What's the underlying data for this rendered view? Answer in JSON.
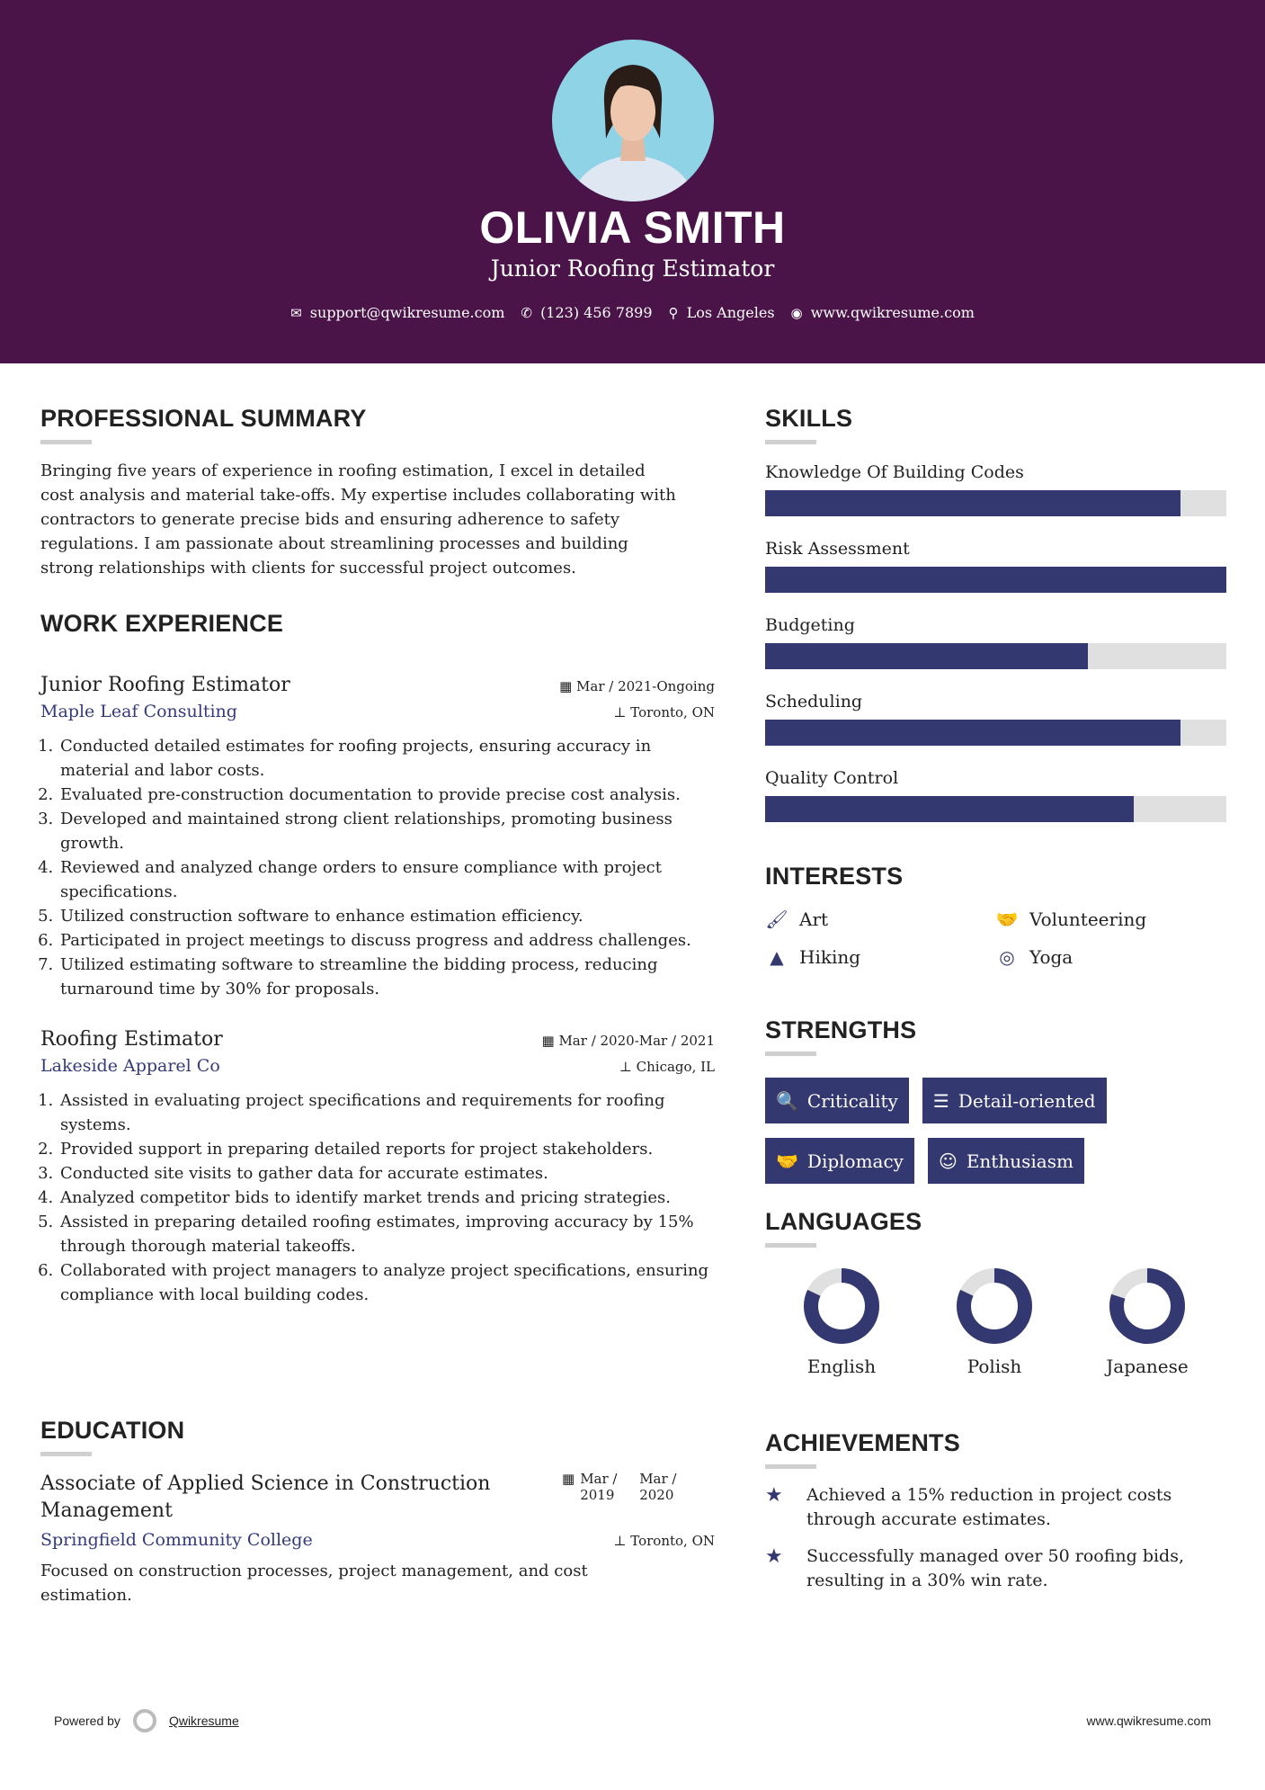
{
  "colors": {
    "header_bg": "#4a1449",
    "accent": "#343870",
    "bar_track": "#e0e0e0"
  },
  "header": {
    "name": "OLIVIA SMITH",
    "title": "Junior Roofing Estimator",
    "contact": [
      {
        "icon": "envelope-icon",
        "glyph": "✉",
        "text": "support@qwikresume.com"
      },
      {
        "icon": "phone-icon",
        "glyph": "✆",
        "text": "(123) 456 7899"
      },
      {
        "icon": "map-pin-icon",
        "glyph": "⚲",
        "text": "Los Angeles"
      },
      {
        "icon": "globe-icon",
        "glyph": "◉",
        "text": "www.qwikresume.com"
      }
    ]
  },
  "summary": {
    "heading": "PROFESSIONAL SUMMARY",
    "lines": [
      "Bringing five years of experience in roofing estimation, I excel in detailed",
      "cost analysis and material take-offs. My expertise includes collaborating with",
      "contractors to generate precise bids and ensuring adherence to safety",
      "regulations. I am passionate about streamlining processes and building",
      "strong relationships with clients for successful project outcomes."
    ]
  },
  "experience": {
    "heading": "WORK EXPERIENCE",
    "jobs": [
      {
        "title": "Junior Roofing Estimator",
        "company": "Maple Leaf Consulting",
        "dates": "Mar / 2021-Ongoing",
        "location": "Toronto, ON",
        "items": [
          "Conducted detailed estimates for roofing projects, ensuring accuracy in material and labor costs.",
          "Evaluated pre-construction documentation to provide precise cost analysis.",
          "Developed and maintained strong client relationships, promoting business growth.",
          "Reviewed and analyzed change orders to ensure compliance with project specifications.",
          "Utilized construction software to enhance estimation efficiency.",
          "Participated in project meetings to discuss progress and address challenges.",
          "Utilized estimating software to streamline the bidding process, reducing turnaround time by 30% for proposals."
        ]
      },
      {
        "title": "Roofing Estimator",
        "company": "Lakeside Apparel Co",
        "dates": "Mar / 2020-Mar / 2021",
        "location": "Chicago, IL",
        "items": [
          "Assisted in evaluating project specifications and requirements for roofing systems.",
          "Provided support in preparing detailed reports for project stakeholders.",
          "Conducted site visits to gather data for accurate estimates.",
          "Analyzed competitor bids to identify market trends and pricing strategies.",
          "Assisted in preparing detailed roofing estimates, improving accuracy by 15% through thorough material takeoffs.",
          "Collaborated with project managers to analyze project specifications, ensuring compliance with local building codes."
        ]
      }
    ]
  },
  "education": {
    "heading": "EDUCATION",
    "degree": "Associate of Applied Science in Construction Management",
    "school": "Springfield Community College",
    "start": "Mar / 2019",
    "end": "Mar / 2020",
    "location": "Toronto, ON",
    "description": "Focused on construction processes, project management, and cost estimation."
  },
  "skills": {
    "heading": "SKILLS",
    "items": [
      {
        "name": "Knowledge Of Building Codes",
        "level": 90
      },
      {
        "name": "Risk Assessment",
        "level": 100
      },
      {
        "name": "Budgeting",
        "level": 70
      },
      {
        "name": "Scheduling",
        "level": 90
      },
      {
        "name": "Quality Control",
        "level": 80
      }
    ]
  },
  "interests": {
    "heading": "INTERESTS",
    "items": [
      {
        "label": "Art",
        "icon": "paintbrush-icon",
        "glyph": "🖌"
      },
      {
        "label": "Volunteering",
        "icon": "handshake-icon",
        "glyph": "🤝"
      },
      {
        "label": "Hiking",
        "icon": "tree-icon",
        "glyph": "▲"
      },
      {
        "label": "Yoga",
        "icon": "life-ring-icon",
        "glyph": "◎"
      }
    ]
  },
  "strengths": {
    "heading": "STRENGTHS",
    "items": [
      {
        "label": "Criticality",
        "icon": "search-icon",
        "glyph": "🔍"
      },
      {
        "label": "Detail-oriented",
        "icon": "list-icon",
        "glyph": "☰"
      },
      {
        "label": "Diplomacy",
        "icon": "handshake-icon",
        "glyph": "🤝"
      },
      {
        "label": "Enthusiasm",
        "icon": "smile-icon",
        "glyph": "☺"
      }
    ]
  },
  "languages": {
    "heading": "LANGUAGES",
    "items": [
      {
        "name": "English",
        "level": 82
      },
      {
        "name": "Polish",
        "level": 82
      },
      {
        "name": "Japanese",
        "level": 80
      }
    ]
  },
  "achievements": {
    "heading": "ACHIEVEMENTS",
    "items": [
      "Achieved a 15% reduction in project costs through accurate estimates.",
      "Successfully managed over 50 roofing bids, resulting in a 30% win rate."
    ]
  },
  "footer": {
    "powered_by": "Powered by",
    "brand": "Qwikresume",
    "url": "www.qwikresume.com"
  }
}
